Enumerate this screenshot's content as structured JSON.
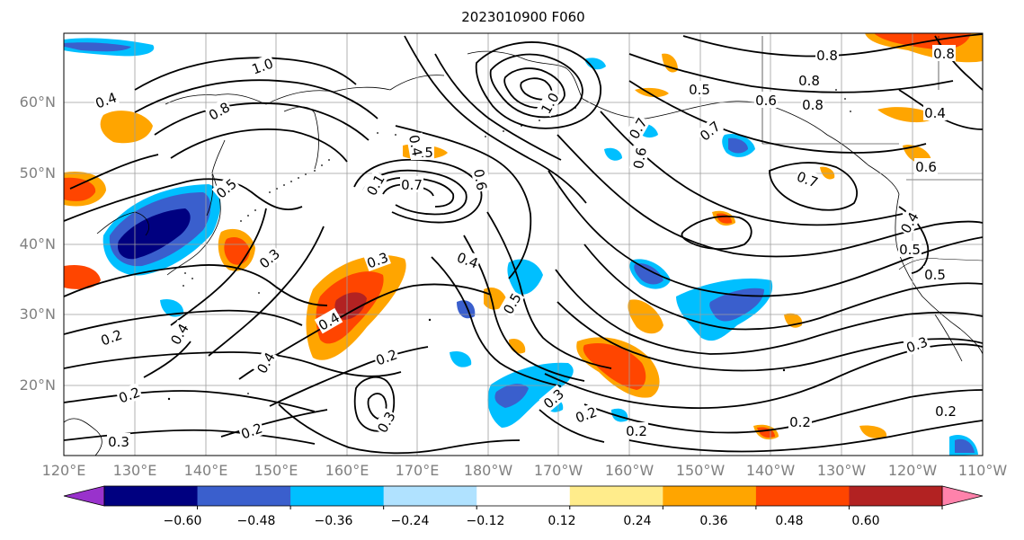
{
  "title": "2023010900 F060",
  "lat_labels": [
    "60°N",
    "50°N",
    "40°N",
    "30°N",
    "20°N"
  ],
  "lon_labels": [
    "120°E",
    "130°E",
    "140°E",
    "150°E",
    "160°E",
    "170°E",
    "180°W",
    "170°W",
    "160°W",
    "150°W",
    "140°W",
    "130°W",
    "120°W",
    "110°W"
  ],
  "colorbar": {
    "tick_labels": [
      "−0.60",
      "−0.48",
      "−0.36",
      "−0.24",
      "−0.12",
      "0.12",
      "0.24",
      "0.36",
      "0.48",
      "0.60"
    ],
    "colors": [
      "#9932cc",
      "#000080",
      "#3a5fcd",
      "#00bfff",
      "#b0e2ff",
      "#ffffff",
      "#ffec8b",
      "#ffa500",
      "#ff4500",
      "#b22222",
      "#ff82ab"
    ]
  },
  "contour_labels": [
    "1.0",
    "1.0",
    "0.8",
    "0.8",
    "0.5",
    "0.6",
    "0.8",
    "0.7",
    "0.6",
    "0.5",
    "0.7",
    "0.4",
    "0.5",
    "0.3",
    "0.3",
    "0.4",
    "0.4",
    "0.5",
    "0.2",
    "0.2",
    "0.3",
    "0.2",
    "0.2",
    "0.3",
    "0.4",
    "0.3",
    "0.2",
    "0.2",
    "0.3",
    "0.2",
    "0.7",
    "0.4",
    "0.5",
    "0.8",
    "0.1",
    "0.6",
    "0.4",
    "0.4",
    "0.5",
    "0.7",
    "0.2",
    "0.8",
    "0.6",
    "0.4"
  ]
}
